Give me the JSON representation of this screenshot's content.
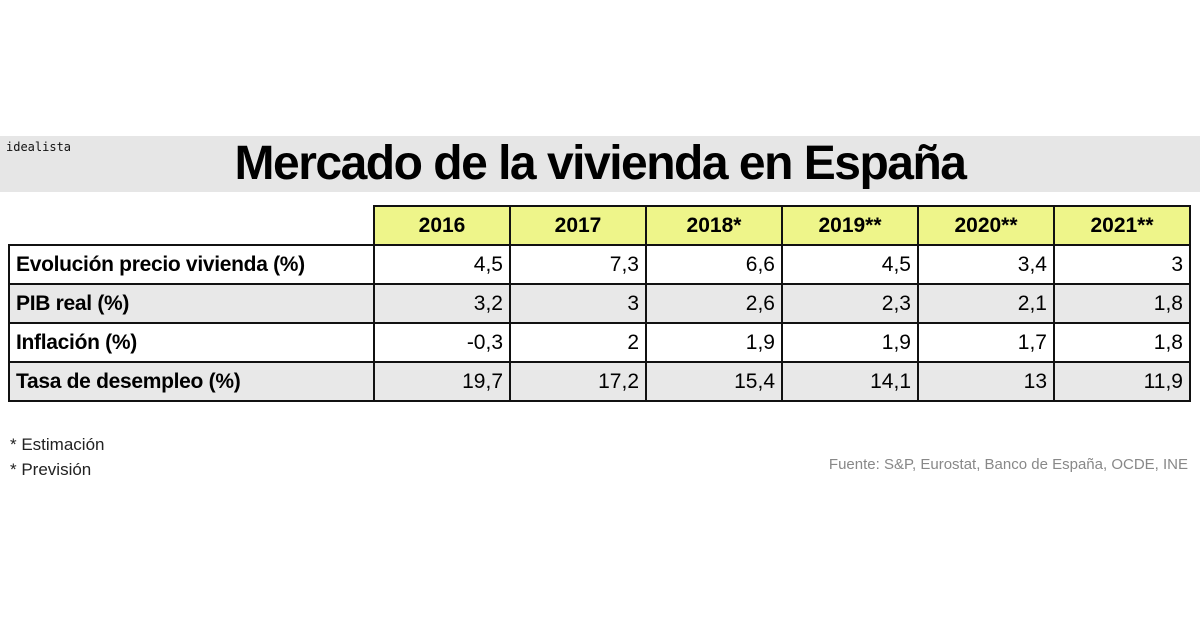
{
  "brand": "idealista",
  "title": "Mercado de la vivienda en España",
  "chart_data": {
    "type": "table",
    "title": "Mercado de la vivienda en España",
    "columns": [
      "2016",
      "2017",
      "2018*",
      "2019**",
      "2020**",
      "2021**"
    ],
    "rows": [
      {
        "label": "Evolución precio vivienda (%)",
        "values": [
          "4,5",
          "7,3",
          "6,6",
          "4,5",
          "3,4",
          "3"
        ]
      },
      {
        "label": "PIB real (%)",
        "values": [
          "3,2",
          "3",
          "2,6",
          "2,3",
          "2,1",
          "1,8"
        ]
      },
      {
        "label": "Inflación (%)",
        "values": [
          "-0,3",
          "2",
          "1,9",
          "1,9",
          "1,7",
          "1,8"
        ]
      },
      {
        "label": "Tasa de desempleo (%)",
        "values": [
          "19,7",
          "17,2",
          "15,4",
          "14,1",
          "13",
          "11,9"
        ]
      }
    ],
    "header_color": "#eef58a",
    "alt_row_color": "#e8e8e8"
  },
  "notes": [
    "* Estimación",
    "* Previsión"
  ],
  "source": "Fuente: S&P, Eurostat, Banco de España, OCDE, INE"
}
